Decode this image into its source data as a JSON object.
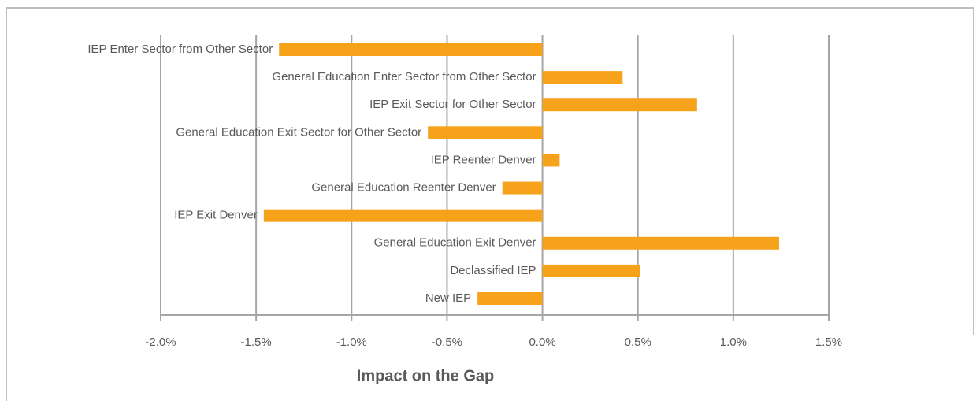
{
  "chart_data": {
    "type": "hbar",
    "x_label": "Impact on the Gap",
    "categories": [
      "IEP Enter Sector from Other Sector",
      "General Education Enter Sector from Other Sector",
      "IEP Exit Sector for Other Sector",
      "General Education Exit Sector for Other Sector",
      "IEP Reenter Denver",
      "General Education Reenter Denver",
      "IEP Exit Denver",
      "General Education Exit Denver",
      "Declassified IEP",
      "New IEP"
    ],
    "values": [
      -1.38,
      0.42,
      0.81,
      -0.6,
      0.09,
      -0.21,
      -1.46,
      1.24,
      0.51,
      -0.34
    ],
    "color": "#f7a21b",
    "xlim": [
      -2.0,
      1.5
    ],
    "xticks": [
      {
        "value": -2.0,
        "label": "-2.0%"
      },
      {
        "value": -1.5,
        "label": "-1.5%"
      },
      {
        "value": -1.0,
        "label": "-1.0%"
      },
      {
        "value": -0.5,
        "label": "-0.5%"
      },
      {
        "value": 0.0,
        "label": "0.0%"
      },
      {
        "value": 0.5,
        "label": "0.5%"
      },
      {
        "value": 1.0,
        "label": "1.0%"
      },
      {
        "value": 1.5,
        "label": "1.5%"
      }
    ],
    "grid": true
  }
}
